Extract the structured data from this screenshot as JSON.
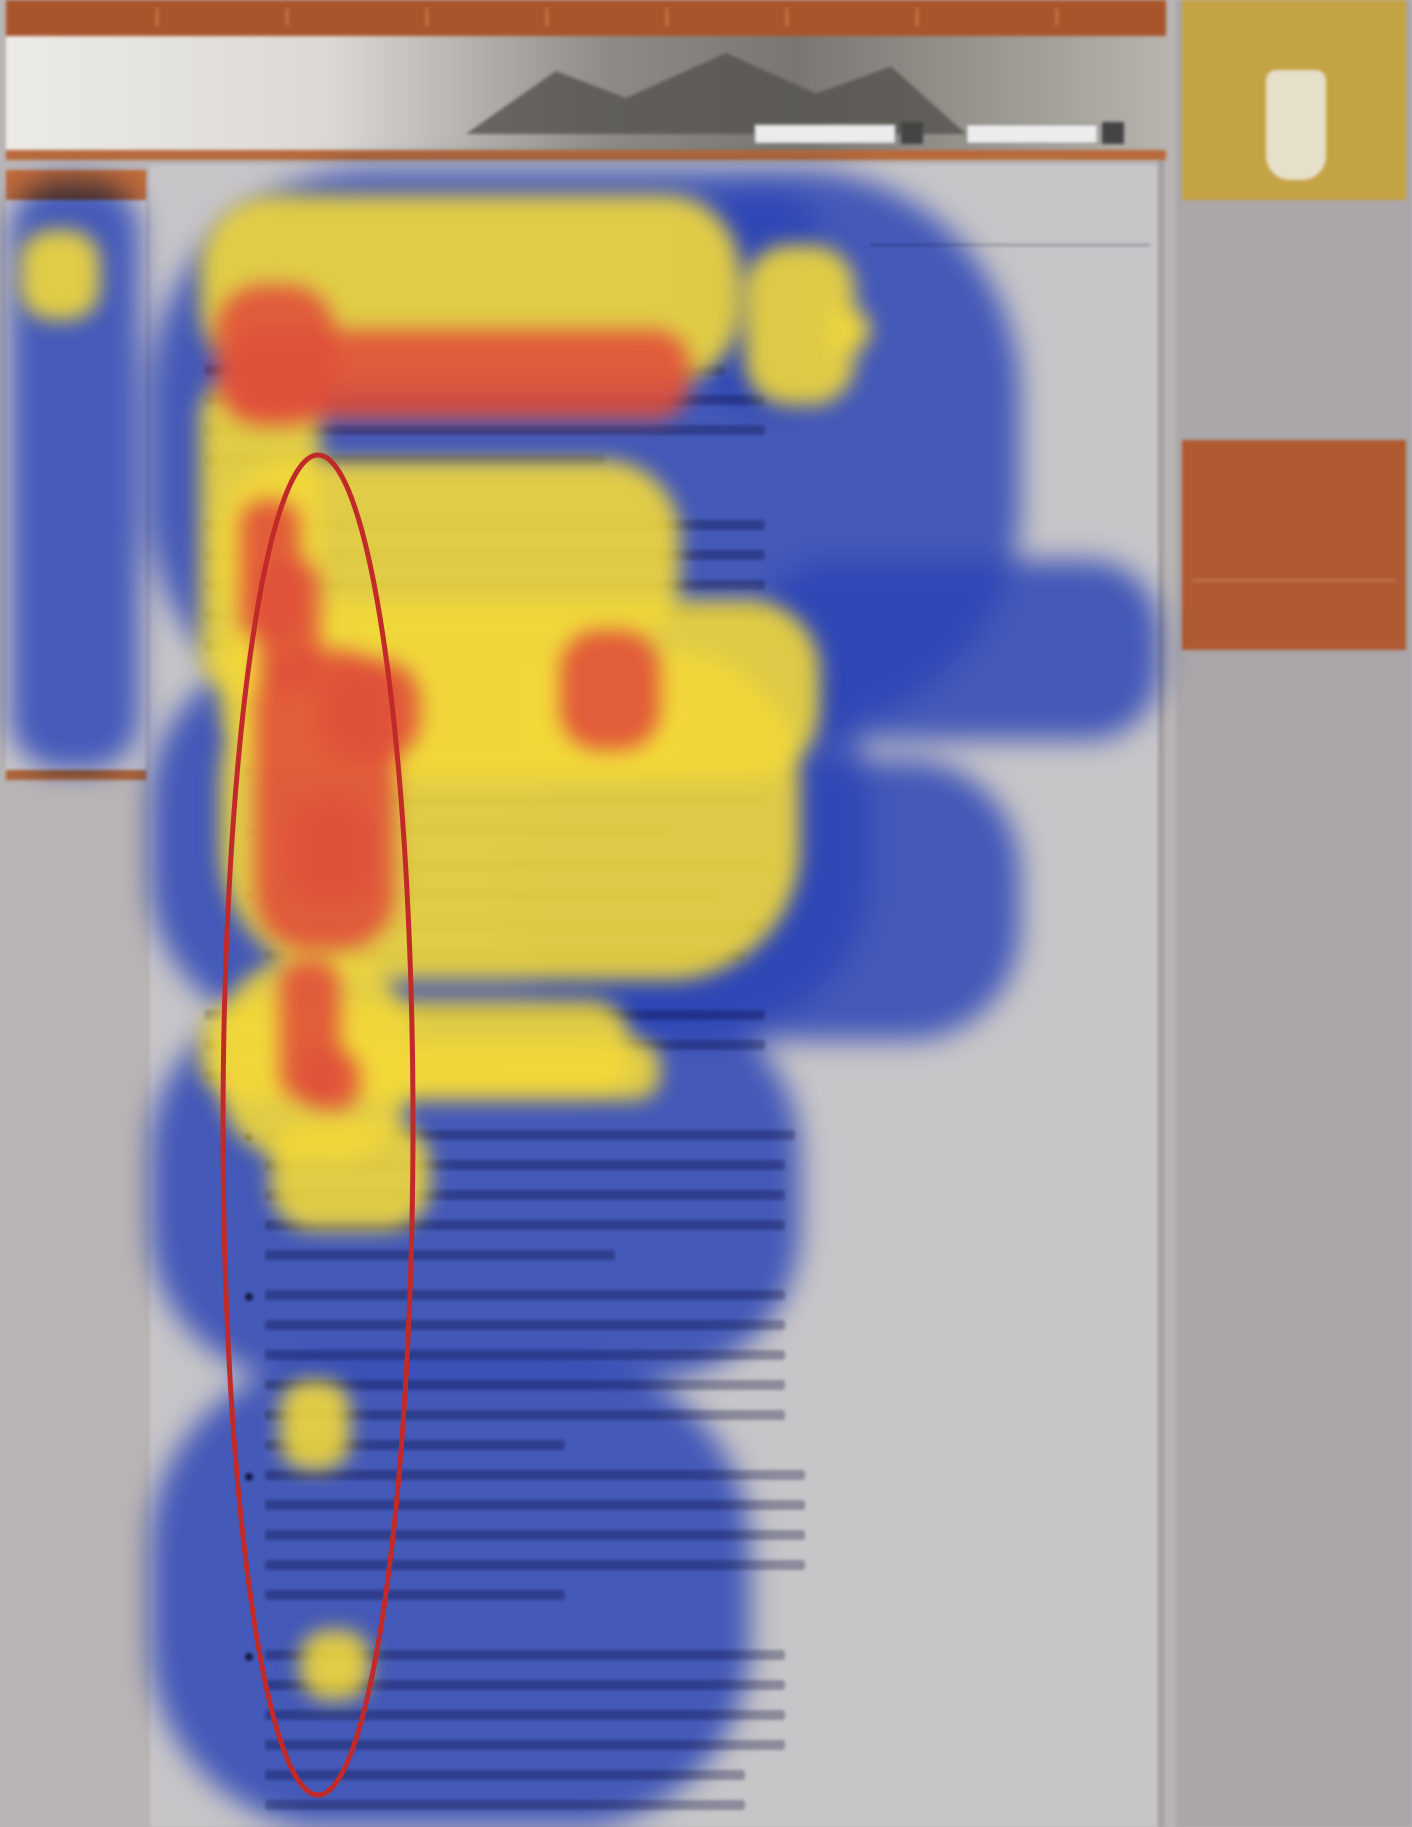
{
  "top_nav": [
    "",
    "",
    "",
    "",
    "",
    "",
    "",
    "",
    "",
    ""
  ],
  "logo": "",
  "logo_sub": "",
  "article": {
    "title": "",
    "subtitle": ""
  },
  "left_nav": [
    "",
    "",
    "",
    "",
    "",
    "",
    "",
    "",
    "",
    "",
    "",
    "",
    "",
    "",
    "",
    ""
  ],
  "related": {
    "title": "",
    "links": [
      "",
      "",
      "",
      "",
      "",
      "",
      "",
      "",
      ""
    ]
  },
  "promo_top": {
    "title": "",
    "subtitle": ""
  },
  "side_text": [
    "",
    "",
    "",
    "",
    ""
  ],
  "promo_bottom": {
    "title": "",
    "small": ""
  },
  "colors": {
    "heat_hot": "#e0503a",
    "heat_warm": "#f2d83a",
    "heat_cool": "#3a5ae8",
    "ellipse": "#c22a2a",
    "nav_bar": "#a9552c"
  }
}
